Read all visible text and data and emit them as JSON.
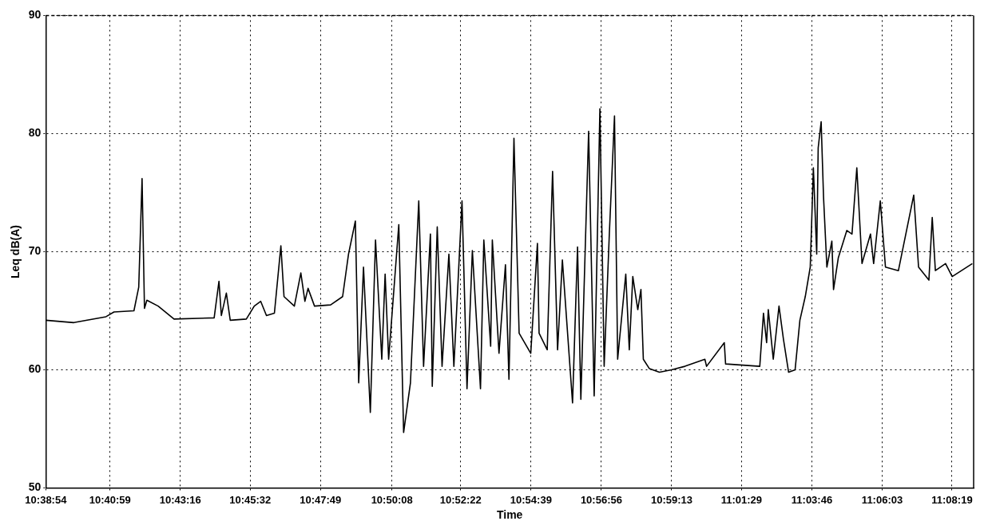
{
  "chart_data": {
    "type": "line",
    "xlabel": "Time",
    "ylabel": "Leq dB(A)",
    "grid": true,
    "legend": false,
    "marker": "none",
    "line_style": "solid",
    "xlim": [
      10.64833,
      11.1503
    ],
    "ylim": [
      50,
      90
    ],
    "yticks": [
      50,
      60,
      70,
      80,
      90
    ],
    "xticks": [
      {
        "value": 10.64833,
        "label": "10:38:54"
      },
      {
        "value": 10.68306,
        "label": "10:40:59"
      },
      {
        "value": 10.72111,
        "label": "10:43:16"
      },
      {
        "value": 10.75889,
        "label": "10:45:32"
      },
      {
        "value": 10.79694,
        "label": "10:47:49"
      },
      {
        "value": 10.83556,
        "label": "10:50:08"
      },
      {
        "value": 10.87278,
        "label": "10:52:22"
      },
      {
        "value": 10.91083,
        "label": "10:54:39"
      },
      {
        "value": 10.94889,
        "label": "10:56:56"
      },
      {
        "value": 10.98694,
        "label": "10:59:13"
      },
      {
        "value": 11.02472,
        "label": "11:01:29"
      },
      {
        "value": 11.06278,
        "label": "11:03:46"
      },
      {
        "value": 11.10083,
        "label": "11:06:03"
      },
      {
        "value": 11.13861,
        "label": "11:08:19"
      }
    ],
    "x": [
      10.64833,
      10.6635,
      10.6809,
      10.6852,
      10.696,
      10.6986,
      10.7004,
      10.7017,
      10.703,
      10.7091,
      10.7177,
      10.7394,
      10.742,
      10.7433,
      10.746,
      10.7481,
      10.7568,
      10.7611,
      10.7646,
      10.7677,
      10.772,
      10.7755,
      10.7772,
      10.7828,
      10.7863,
      10.7885,
      10.7902,
      10.7937,
      10.8024,
      10.8089,
      10.8121,
      10.8158,
      10.8176,
      10.8202,
      10.8239,
      10.8267,
      10.8301,
      10.8319,
      10.8338,
      10.8393,
      10.8419,
      10.8456,
      10.8501,
      10.8527,
      10.8564,
      10.8574,
      10.8601,
      10.8627,
      10.8664,
      10.8691,
      10.8735,
      10.8762,
      10.8791,
      10.8835,
      10.8853,
      10.889,
      10.8899,
      10.8935,
      10.897,
      10.8989,
      10.9016,
      10.9044,
      10.9107,
      10.9143,
      10.9152,
      10.9196,
      10.9225,
      10.9252,
      10.9278,
      10.9333,
      10.936,
      10.9378,
      10.942,
      10.945,
      10.9481,
      10.9504,
      10.9532,
      10.956,
      10.9577,
      10.9621,
      10.964,
      10.9659,
      10.9686,
      10.9703,
      10.9716,
      10.9749,
      10.9803,
      10.9868,
      10.9941,
      11.0049,
      11.0058,
      11.0154,
      11.0161,
      11.0346,
      11.0366,
      11.0383,
      11.0392,
      11.0419,
      11.045,
      11.0474,
      11.0502,
      11.0537,
      11.0563,
      11.0592,
      11.0619,
      11.0636,
      11.0654,
      11.0662,
      11.0678,
      11.0691,
      11.0709,
      11.0736,
      11.0745,
      11.0771,
      11.0817,
      11.0845,
      11.0871,
      11.0899,
      11.0945,
      11.0962,
      11.0998,
      11.1026,
      11.1096,
      11.1179,
      11.1205,
      11.1261,
      11.1279,
      11.1296,
      11.1351,
      11.1387,
      11.1496
    ],
    "series": [
      {
        "color": "#000000",
        "values": [
          64.2,
          64.0,
          64.5,
          64.9,
          65.0,
          67,
          76.2,
          65.2,
          65.9,
          65.4,
          64.3,
          64.4,
          67.5,
          64.6,
          66.5,
          64.2,
          64.3,
          65.4,
          65.8,
          64.6,
          64.8,
          70.5,
          66.2,
          65.4,
          68.2,
          65.8,
          66.9,
          65.4,
          65.5,
          66.2,
          69.8,
          72.6,
          58.9,
          68.7,
          56.4,
          71,
          60.9,
          68.1,
          60.9,
          72.3,
          54.7,
          58.9,
          74.3,
          60.3,
          71.5,
          58.6,
          72.1,
          60.3,
          69.8,
          60.3,
          74.3,
          58.4,
          70.1,
          58.4,
          71,
          62,
          71,
          61.4,
          68.9,
          59.2,
          79.6,
          63.1,
          61.4,
          70.7,
          63.1,
          61.7,
          76.8,
          61.7,
          69.3,
          57.2,
          70.4,
          57.5,
          80.2,
          57.8,
          82.1,
          60.3,
          71.5,
          81.5,
          60.9,
          68.1,
          61.7,
          67.9,
          65.1,
          66.8,
          60.9,
          60.1,
          59.8,
          60.0,
          60.3,
          60.9,
          60.3,
          62.3,
          60.5,
          60.3,
          64.8,
          62.3,
          65.1,
          60.9,
          65.4,
          62.6,
          59.8,
          60.0,
          64.2,
          66.2,
          68.7,
          77.1,
          69.8,
          78.8,
          81,
          74.6,
          68.7,
          70.9,
          66.8,
          69.5,
          71.8,
          71.5,
          77.1,
          69.0,
          71.5,
          69,
          74.3,
          68.7,
          68.4,
          74.8,
          68.7,
          67.6,
          72.9,
          68.4,
          69,
          67.9,
          69
        ]
      }
    ]
  }
}
